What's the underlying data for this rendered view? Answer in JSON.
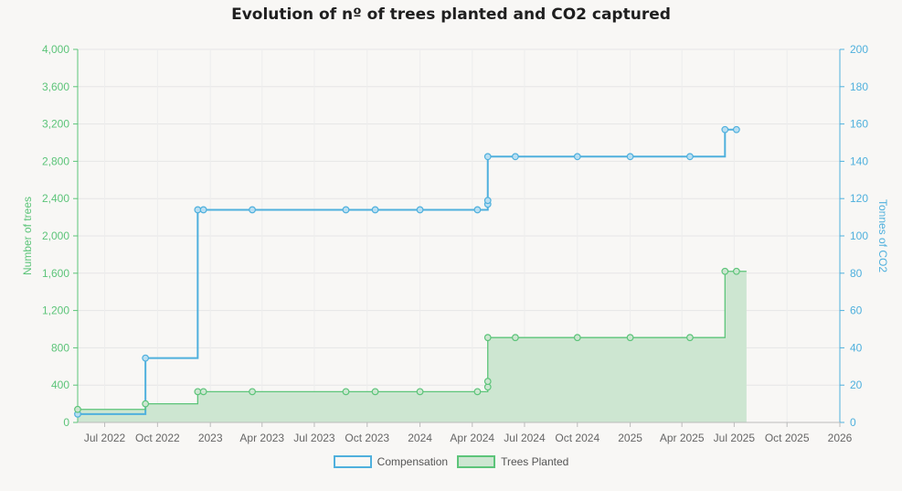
{
  "chart_data": {
    "type": "line",
    "title": "Evolution of nº of trees planted and CO2 captured",
    "y_left": {
      "label": "Number of trees",
      "ylim": [
        0,
        4000
      ],
      "ticks": [
        "0",
        "400",
        "800",
        "1,200",
        "1,600",
        "2,000",
        "2,400",
        "2,800",
        "3,200",
        "3,600",
        "4,000"
      ]
    },
    "y_right": {
      "label": "Tonnes of CO2",
      "ylim": [
        0,
        200
      ],
      "ticks": [
        "0",
        "20",
        "40",
        "60",
        "80",
        "100",
        "120",
        "140",
        "160",
        "180",
        "200"
      ]
    },
    "x_axis": {
      "range": [
        "2022-05-15",
        "2026-01-01"
      ],
      "ticks": [
        {
          "date": "2022-07-01",
          "label": "Jul 2022"
        },
        {
          "date": "2022-10-01",
          "label": "Oct 2022"
        },
        {
          "date": "2023-01-01",
          "label": "2023"
        },
        {
          "date": "2023-04-01",
          "label": "Apr 2023"
        },
        {
          "date": "2023-07-01",
          "label": "Jul 2023"
        },
        {
          "date": "2023-10-01",
          "label": "Oct 2023"
        },
        {
          "date": "2024-01-01",
          "label": "2024"
        },
        {
          "date": "2024-04-01",
          "label": "Apr 2024"
        },
        {
          "date": "2024-07-01",
          "label": "Jul 2024"
        },
        {
          "date": "2024-10-01",
          "label": "Oct 2024"
        },
        {
          "date": "2025-01-01",
          "label": "2025"
        },
        {
          "date": "2025-04-01",
          "label": "Apr 2025"
        },
        {
          "date": "2025-07-01",
          "label": "Jul 2025"
        },
        {
          "date": "2025-10-01",
          "label": "Oct 2025"
        },
        {
          "date": "2026-01-01",
          "label": "2026"
        }
      ]
    },
    "grid": true,
    "legend_position": "bottom",
    "series": [
      {
        "name": "Compensation",
        "axis": "right",
        "style": "step-line",
        "color": "#4fb0dd",
        "points": [
          {
            "x": "2022-05-15",
            "y": 4.5
          },
          {
            "x": "2022-09-10",
            "y": 34.5
          },
          {
            "x": "2022-12-10",
            "y": 114
          },
          {
            "x": "2022-12-20",
            "y": 114
          },
          {
            "x": "2023-03-15",
            "y": 114
          },
          {
            "x": "2023-08-25",
            "y": 114
          },
          {
            "x": "2023-10-15",
            "y": 114
          },
          {
            "x": "2024-01-01",
            "y": 114
          },
          {
            "x": "2024-04-10",
            "y": 114
          },
          {
            "x": "2024-04-28",
            "y": 117
          },
          {
            "x": "2024-04-28",
            "y": 119
          },
          {
            "x": "2024-04-28",
            "y": 142.5
          },
          {
            "x": "2024-06-15",
            "y": 142.5
          },
          {
            "x": "2024-10-01",
            "y": 142.5
          },
          {
            "x": "2025-01-01",
            "y": 142.5
          },
          {
            "x": "2025-04-15",
            "y": 142.5
          },
          {
            "x": "2025-06-15",
            "y": 157
          },
          {
            "x": "2025-07-05",
            "y": 157
          }
        ]
      },
      {
        "name": "Trees Planted",
        "axis": "left",
        "style": "step-area",
        "color": "#5cc479",
        "fill": "#cde6d1",
        "points": [
          {
            "x": "2022-05-15",
            "y": 140
          },
          {
            "x": "2022-09-10",
            "y": 200
          },
          {
            "x": "2022-12-10",
            "y": 330
          },
          {
            "x": "2022-12-20",
            "y": 330
          },
          {
            "x": "2023-03-15",
            "y": 330
          },
          {
            "x": "2023-08-25",
            "y": 330
          },
          {
            "x": "2023-10-15",
            "y": 330
          },
          {
            "x": "2024-01-01",
            "y": 330
          },
          {
            "x": "2024-04-10",
            "y": 330
          },
          {
            "x": "2024-04-28",
            "y": 380
          },
          {
            "x": "2024-04-28",
            "y": 440
          },
          {
            "x": "2024-04-28",
            "y": 910
          },
          {
            "x": "2024-06-15",
            "y": 910
          },
          {
            "x": "2024-10-01",
            "y": 910
          },
          {
            "x": "2025-01-01",
            "y": 910
          },
          {
            "x": "2025-04-15",
            "y": 910
          },
          {
            "x": "2025-06-15",
            "y": 1620
          },
          {
            "x": "2025-07-05",
            "y": 1620
          }
        ]
      }
    ]
  },
  "legend": {
    "compensation": "Compensation",
    "trees_planted": "Trees Planted"
  }
}
